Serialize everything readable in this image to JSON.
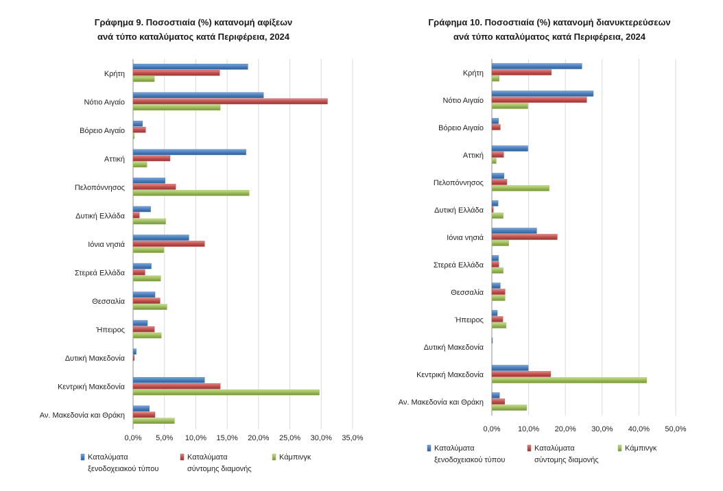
{
  "colors": {
    "hotel": "#4a7ebb",
    "short": "#c0504d",
    "camp": "#9bbb59",
    "grid": "#d9d9d9"
  },
  "legend_labels": {
    "hotel": [
      "Καταλύματα",
      "ξενοδοχειακού τύπου"
    ],
    "short": [
      "Καταλύματα",
      "σύντομης διαμονής"
    ],
    "camp": [
      "Κάμπινγκ"
    ]
  },
  "chart_data": [
    {
      "type": "bar",
      "orientation": "horizontal",
      "title": [
        "Γράφημα 9. Ποσοστιαία (%) κατανομή αφίξεων",
        "ανά τύπο καταλύματος κατά Περιφέρεια, 2024"
      ],
      "categories": [
        "Κρήτη",
        "Νότιο Αιγαίο",
        "Βόρειο Αιγαίο",
        "Αττική",
        "Πελοπόννησος",
        "Δυτική Ελλάδα",
        "Ιόνια νησιά",
        "Στερεά Ελλάδα",
        "Θεσσαλία",
        "Ήπειρος",
        "Δυτική Μακεδονία",
        "Κεντρική Μακεδονία",
        "Αν. Μακεδονία και Θράκη"
      ],
      "series": [
        {
          "name": "Καταλύματα ξενοδοχειακού τύπου",
          "values": [
            18.3,
            20.8,
            1.5,
            18.0,
            5.1,
            2.8,
            8.9,
            2.9,
            3.5,
            2.3,
            0.5,
            11.4,
            2.6
          ]
        },
        {
          "name": "Καταλύματα σύντομης διαμονής",
          "values": [
            13.8,
            31.0,
            2.0,
            5.9,
            6.8,
            1.0,
            11.4,
            1.9,
            4.3,
            3.4,
            0.2,
            13.9,
            3.5
          ]
        },
        {
          "name": "Κάμπινγκ",
          "values": [
            3.4,
            13.9,
            0.2,
            2.2,
            18.5,
            5.2,
            4.9,
            4.4,
            5.4,
            4.5,
            0.0,
            29.7,
            6.6
          ]
        }
      ],
      "xlim": [
        0,
        35
      ],
      "ticks": [
        "0,0%",
        "5,0%",
        "10,0%",
        "15,0%",
        "20,0%",
        "25,0%",
        "30,0%",
        "35,0%"
      ],
      "grid": true,
      "legend": "bottom"
    },
    {
      "type": "bar",
      "orientation": "horizontal",
      "title": [
        "Γράφημα 10. Ποσοστιαία (%) κατανομή διανυκτερεύσεων",
        "ανά τύπο καταλύματος κατά Περιφέρεια, 2024"
      ],
      "categories": [
        "Κρήτη",
        "Νότιο Αιγαίο",
        "Βόρειο Αιγαίο",
        "Αττική",
        "Πελοπόννησος",
        "Δυτική Ελλάδα",
        "Ιόνια νησιά",
        "Στερεά Ελλάδα",
        "Θεσσαλία",
        "Ήπειρος",
        "Δυτική Μακεδονία",
        "Κεντρική Μακεδονία",
        "Αν. Μακεδονία και Θράκη"
      ],
      "series": [
        {
          "name": "Καταλύματα ξενοδοχειακού τύπου",
          "values": [
            24.5,
            27.6,
            1.8,
            9.8,
            3.3,
            1.7,
            12.2,
            1.8,
            2.3,
            1.5,
            0.1,
            9.9,
            2.1
          ]
        },
        {
          "name": "Καταλύματα σύντομης διαμονής",
          "values": [
            16.2,
            25.8,
            2.3,
            3.2,
            4.1,
            0.4,
            17.8,
            1.9,
            3.6,
            3.0,
            0.0,
            16.0,
            3.5
          ]
        },
        {
          "name": "Κάμπινγκ",
          "values": [
            2.0,
            9.8,
            0.0,
            1.2,
            15.6,
            3.1,
            4.6,
            3.1,
            3.6,
            3.9,
            0.0,
            42.1,
            9.5
          ]
        }
      ],
      "xlim": [
        0,
        50
      ],
      "ticks": [
        "0,0%",
        "10,0%",
        "20,0%",
        "30,0%",
        "40,0%",
        "50,0%"
      ],
      "grid": true,
      "legend": "bottom"
    }
  ]
}
